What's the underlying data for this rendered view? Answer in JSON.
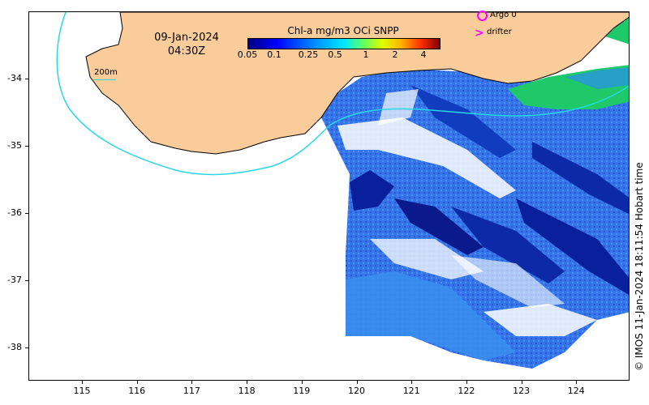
{
  "map": {
    "date": "09-Jan-2024",
    "time": "04:30Z",
    "credit": "© IMOS 11-Jan-2024 18:11:54 Hobart time",
    "lon_ticks": [
      "115",
      "116",
      "117",
      "118",
      "119",
      "120",
      "121",
      "122",
      "123",
      "124"
    ],
    "lat_ticks": [
      "-34",
      "-35",
      "-36",
      "-37",
      "-38"
    ],
    "land_color": "#f9cc9a",
    "isobath_color": "#27d8e8",
    "isobath_label": "200m"
  },
  "colorbar": {
    "title": "Chl-a mg/m3 OCi SNPP",
    "ticks": [
      "0.05",
      "0.1",
      "0.25",
      "0.5",
      "1",
      "2",
      "4"
    ],
    "colors": [
      "#00007f",
      "#0000ff",
      "#0080ff",
      "#00e0ff",
      "#40ff80",
      "#c0ff00",
      "#ffe000",
      "#ff8000",
      "#d02000",
      "#7f0000"
    ]
  },
  "legend": {
    "argo_label": "Argo 0",
    "drifter_label": "drifter",
    "argo_color": "#ff00ff",
    "drifter_color": "#ff00ff"
  }
}
